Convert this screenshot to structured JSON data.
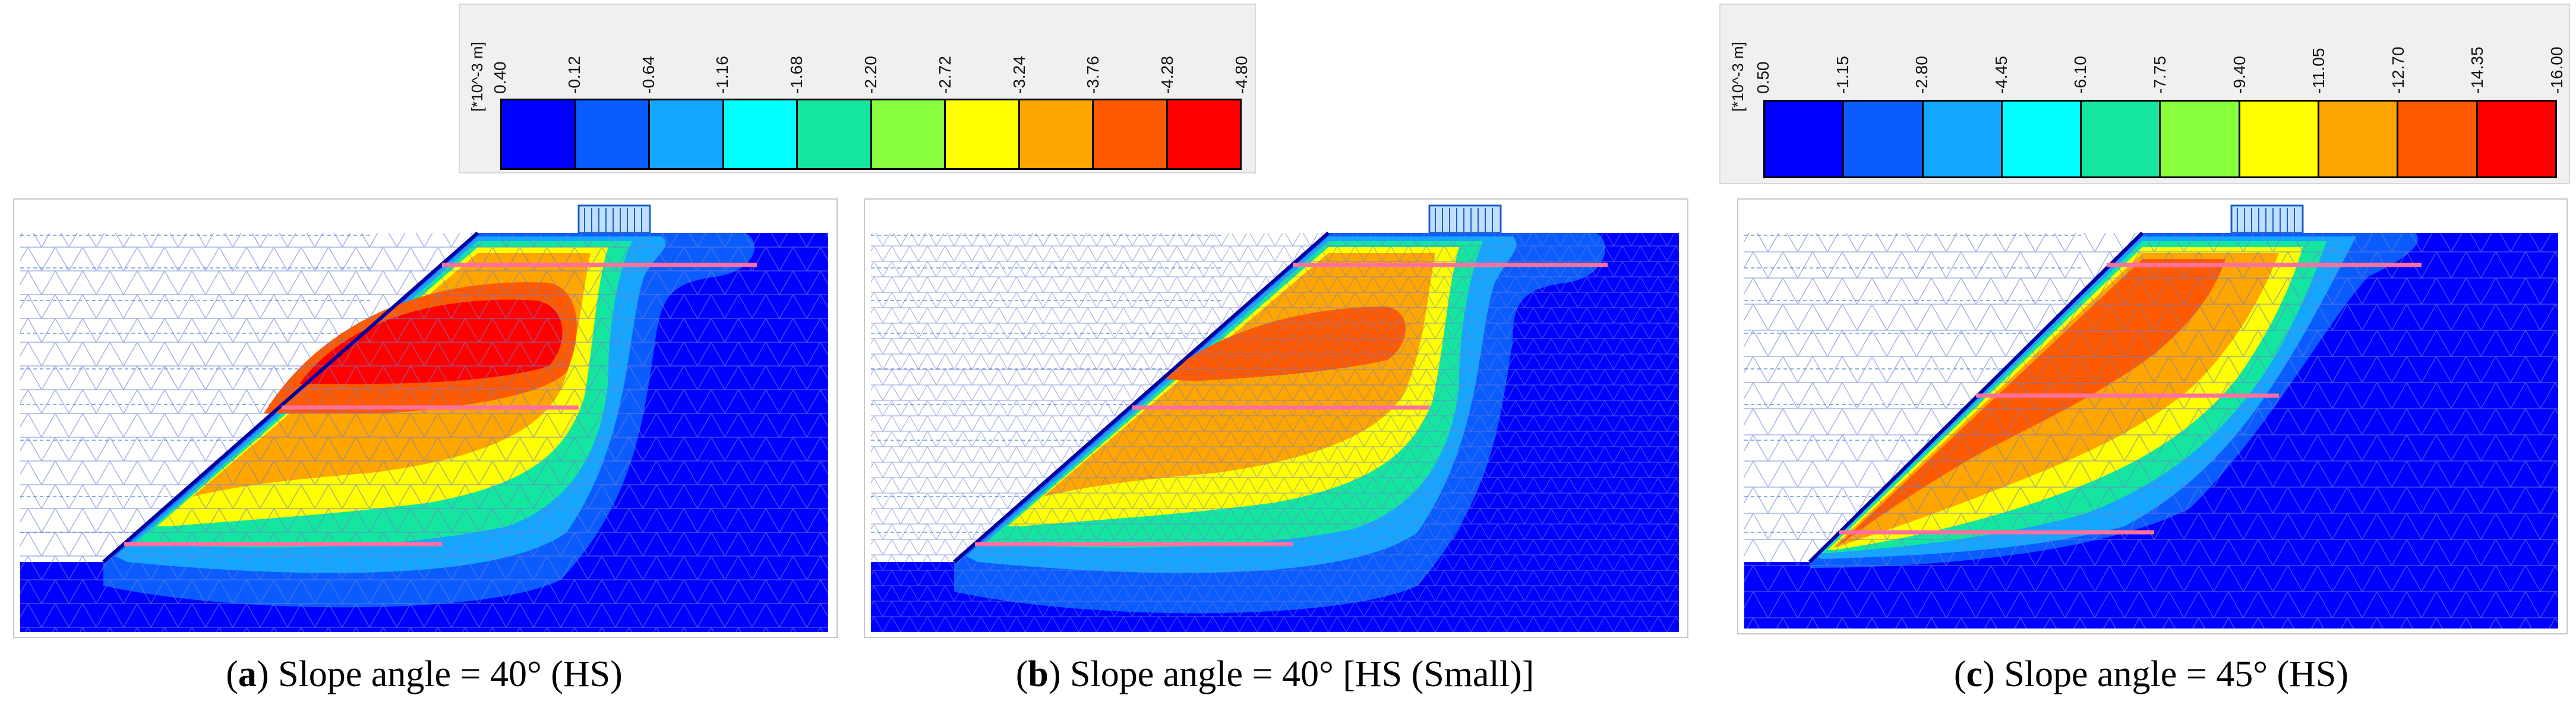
{
  "legends": [
    {
      "unit": "[*10^-3 m]",
      "ticks": [
        "0.40",
        "-0.12",
        "-0.64",
        "-1.16",
        "-1.68",
        "-2.20",
        "-2.72",
        "-3.24",
        "-3.76",
        "-4.28",
        "-4.80"
      ],
      "colors": [
        "#0000ff",
        "#0a5cff",
        "#15a6ff",
        "#00ffff",
        "#14e6a0",
        "#88ff3c",
        "#ffff00",
        "#ffa500",
        "#ff5a00",
        "#ff0000"
      ]
    },
    {
      "unit": "[*10^-3 m]",
      "ticks": [
        "0.50",
        "-1.15",
        "-2.80",
        "-4.45",
        "-6.10",
        "-7.75",
        "-9.40",
        "-11.05",
        "-12.70",
        "-14.35",
        "-16.00"
      ],
      "colors": [
        "#0000ff",
        "#0a5cff",
        "#15a6ff",
        "#00ffff",
        "#14e6a0",
        "#88ff3c",
        "#ffff00",
        "#ffa500",
        "#ff5a00",
        "#ff0000"
      ]
    }
  ],
  "panels": [
    {
      "letter": "a",
      "caption_text": ") Slope angle = 40° (HS)",
      "open": "("
    },
    {
      "letter": "b",
      "caption_text": ") Slope angle = 40° [HS (Small)]",
      "open": "("
    },
    {
      "letter": "c",
      "caption_text": ") Slope angle = 45° (HS)",
      "open": "("
    }
  ]
}
